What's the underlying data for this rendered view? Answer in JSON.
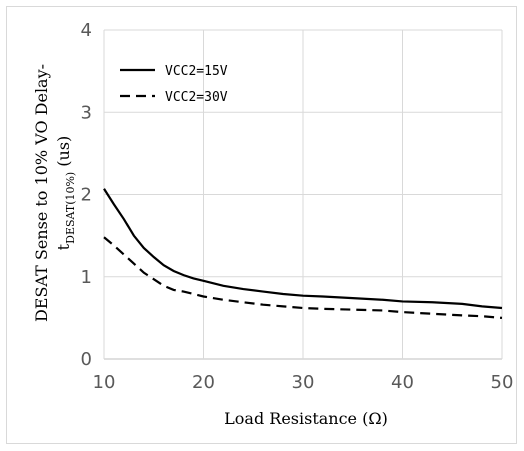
{
  "chart_data": {
    "type": "line",
    "xlabel": "Load Resistance (Ω)",
    "ylabel_line1": "DESAT Sense to 10% VO Delay-",
    "ylabel_line2_main": "t",
    "ylabel_line2_sub": "DESAT(10%)",
    "ylabel_line2_tail": " (us)",
    "xlim": [
      10,
      50
    ],
    "ylim": [
      0,
      4
    ],
    "x_ticks": [
      10,
      20,
      30,
      40,
      50
    ],
    "y_ticks": [
      0,
      1,
      2,
      3,
      4
    ],
    "grid": true,
    "legend_position": "top-left",
    "series": [
      {
        "name": "VCC2=15V",
        "style": "solid",
        "color": "#000000",
        "x": [
          10,
          11,
          12,
          13,
          14,
          15,
          16,
          17,
          18,
          19,
          20,
          22,
          24,
          26,
          28,
          30,
          32,
          35,
          38,
          40,
          43,
          46,
          48,
          50
        ],
        "y": [
          2.07,
          1.88,
          1.7,
          1.5,
          1.35,
          1.24,
          1.14,
          1.07,
          1.02,
          0.98,
          0.95,
          0.89,
          0.85,
          0.82,
          0.79,
          0.77,
          0.76,
          0.74,
          0.72,
          0.7,
          0.69,
          0.67,
          0.64,
          0.62
        ]
      },
      {
        "name": "VCC2=30V",
        "style": "dashed",
        "color": "#000000",
        "x": [
          10,
          11,
          12,
          13,
          14,
          15,
          16,
          17,
          18,
          19,
          20,
          22,
          24,
          26,
          28,
          30,
          32,
          35,
          38,
          40,
          43,
          46,
          48,
          50
        ],
        "y": [
          1.48,
          1.38,
          1.27,
          1.16,
          1.05,
          0.97,
          0.89,
          0.84,
          0.82,
          0.79,
          0.76,
          0.72,
          0.69,
          0.66,
          0.64,
          0.62,
          0.61,
          0.6,
          0.59,
          0.57,
          0.55,
          0.53,
          0.52,
          0.5
        ]
      }
    ]
  }
}
